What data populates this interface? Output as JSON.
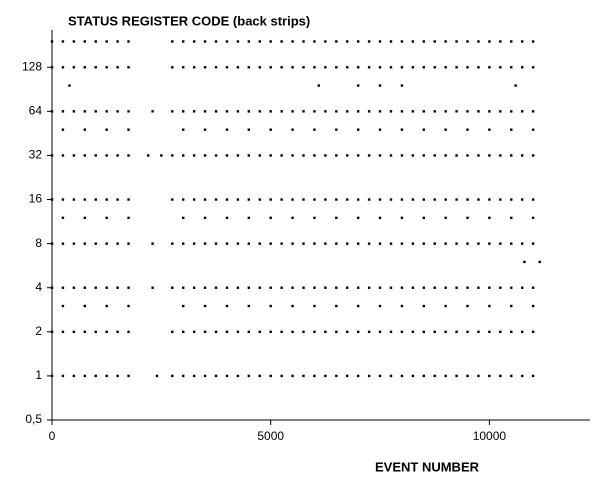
{
  "chart_data": {
    "type": "scatter",
    "title": "STATUS REGISTER CODE (back strips)",
    "x_label": "EVENT NUMBER",
    "log_y": true,
    "log_base": 2,
    "color": "#000000",
    "xlim": [
      0,
      12300
    ],
    "xticks": [
      0,
      5000,
      10000
    ],
    "ylim": [
      0.5,
      230
    ],
    "yticks": [
      {
        "value": 0.5,
        "label": "0,5"
      },
      1,
      2,
      4,
      8,
      16,
      32,
      64,
      128
    ],
    "series": [
      {
        "level": 192,
        "x": [
          0,
          250,
          500,
          750,
          1000,
          1250,
          1500,
          1750,
          2750,
          3000,
          3250,
          3500,
          3750,
          4000,
          4250,
          4500,
          4750,
          5000,
          5250,
          5500,
          5750,
          6000,
          6250,
          6500,
          6750,
          7000,
          7250,
          7500,
          7750,
          8000,
          8250,
          8500,
          8750,
          9000,
          9250,
          9500,
          9750,
          10000,
          10250,
          10500,
          10750,
          11000
        ]
      },
      {
        "level": 128,
        "x": [
          0,
          250,
          500,
          750,
          1000,
          1250,
          1500,
          1750,
          2750,
          3000,
          3250,
          3500,
          3750,
          4000,
          4250,
          4500,
          4750,
          5000,
          5250,
          5500,
          5750,
          6000,
          6250,
          6500,
          6750,
          7000,
          7250,
          7500,
          7750,
          8000,
          8250,
          8500,
          8750,
          9000,
          9250,
          9500,
          9750,
          10000,
          10250,
          10500,
          10750,
          11000
        ]
      },
      {
        "level": 96,
        "x": [
          400,
          6100,
          7000,
          7500,
          8000,
          10600
        ]
      },
      {
        "level": 64,
        "x": [
          0,
          250,
          500,
          750,
          1000,
          1250,
          1500,
          1750,
          2300,
          2750,
          3000,
          3250,
          3500,
          3750,
          4000,
          4250,
          4500,
          4750,
          5000,
          5250,
          5500,
          5750,
          6000,
          6250,
          6500,
          6750,
          7000,
          7250,
          7500,
          7750,
          8000,
          8250,
          8500,
          8750,
          9000,
          9250,
          9500,
          9750,
          10000,
          10250,
          10500,
          10750,
          11000
        ]
      },
      {
        "level": 48,
        "x": [
          250,
          750,
          1250,
          1750,
          3000,
          3500,
          4000,
          4500,
          5000,
          5500,
          6000,
          6500,
          7000,
          7500,
          8000,
          8500,
          9000,
          9500,
          10000,
          10500,
          11000
        ]
      },
      {
        "level": 32,
        "x": [
          0,
          250,
          500,
          750,
          1000,
          1250,
          1500,
          1750,
          2200,
          2500,
          2750,
          3000,
          3250,
          3500,
          3750,
          4000,
          4250,
          4500,
          4750,
          5000,
          5250,
          5500,
          5750,
          6000,
          6250,
          6500,
          6750,
          7000,
          7250,
          7500,
          7750,
          8000,
          8250,
          8500,
          8750,
          9000,
          9250,
          9500,
          9750,
          10000,
          10250,
          10500,
          10750,
          11000
        ]
      },
      {
        "level": 16,
        "x": [
          0,
          250,
          500,
          750,
          1000,
          1250,
          1500,
          1750,
          2750,
          3000,
          3250,
          3500,
          3750,
          4000,
          4250,
          4500,
          4750,
          5000,
          5250,
          5500,
          5750,
          6000,
          6250,
          6500,
          6750,
          7000,
          7250,
          7500,
          7750,
          8000,
          8250,
          8500,
          8750,
          9000,
          9250,
          9500,
          9750,
          10000,
          10250,
          10500,
          10750,
          11000
        ]
      },
      {
        "level": 12,
        "x": [
          250,
          750,
          1250,
          1750,
          3000,
          3500,
          4000,
          4500,
          5000,
          5500,
          6000,
          6500,
          7000,
          7500,
          8000,
          8500,
          9000,
          9500,
          10000,
          10500,
          11000
        ]
      },
      {
        "level": 8,
        "x": [
          0,
          250,
          500,
          750,
          1000,
          1250,
          1500,
          1750,
          2300,
          2750,
          3000,
          3250,
          3500,
          3750,
          4000,
          4250,
          4500,
          4750,
          5000,
          5250,
          5500,
          5750,
          6000,
          6250,
          6500,
          6750,
          7000,
          7250,
          7500,
          7750,
          8000,
          8250,
          8500,
          8750,
          9000,
          9250,
          9500,
          9750,
          10000,
          10250,
          10500,
          10750,
          11000
        ]
      },
      {
        "level": 6,
        "x": [
          10800,
          11150
        ]
      },
      {
        "level": 4,
        "x": [
          0,
          250,
          500,
          750,
          1000,
          1250,
          1500,
          1750,
          2300,
          2750,
          3000,
          3250,
          3500,
          3750,
          4000,
          4250,
          4500,
          4750,
          5000,
          5250,
          5500,
          5750,
          6000,
          6250,
          6500,
          6750,
          7000,
          7250,
          7500,
          7750,
          8000,
          8250,
          8500,
          8750,
          9000,
          9250,
          9500,
          9750,
          10000,
          10250,
          10500,
          10750,
          11000
        ]
      },
      {
        "level": 3,
        "x": [
          250,
          750,
          1250,
          1750,
          3000,
          3500,
          4000,
          4500,
          5000,
          5500,
          6000,
          6500,
          7000,
          7500,
          8000,
          8500,
          9000,
          9500,
          10000,
          10500,
          11000
        ]
      },
      {
        "level": 2,
        "x": [
          0,
          250,
          500,
          750,
          1000,
          1250,
          1500,
          1750,
          2750,
          3000,
          3250,
          3500,
          3750,
          4000,
          4250,
          4500,
          4750,
          5000,
          5250,
          5500,
          5750,
          6000,
          6250,
          6500,
          6750,
          7000,
          7250,
          7500,
          7750,
          8000,
          8250,
          8500,
          8750,
          9000,
          9250,
          9500,
          9750,
          10000,
          10250,
          10500,
          10750,
          11000
        ]
      },
      {
        "level": 1,
        "x": [
          0,
          250,
          500,
          750,
          1000,
          1250,
          1500,
          1750,
          2400,
          2750,
          3000,
          3250,
          3500,
          3750,
          4000,
          4250,
          4500,
          4750,
          5000,
          5250,
          5500,
          5750,
          6000,
          6250,
          6500,
          6750,
          7000,
          7250,
          7500,
          7750,
          8000,
          8250,
          8500,
          8750,
          9000,
          9250,
          9500,
          9750,
          10000,
          10250,
          10500,
          10750,
          11000
        ]
      }
    ]
  }
}
